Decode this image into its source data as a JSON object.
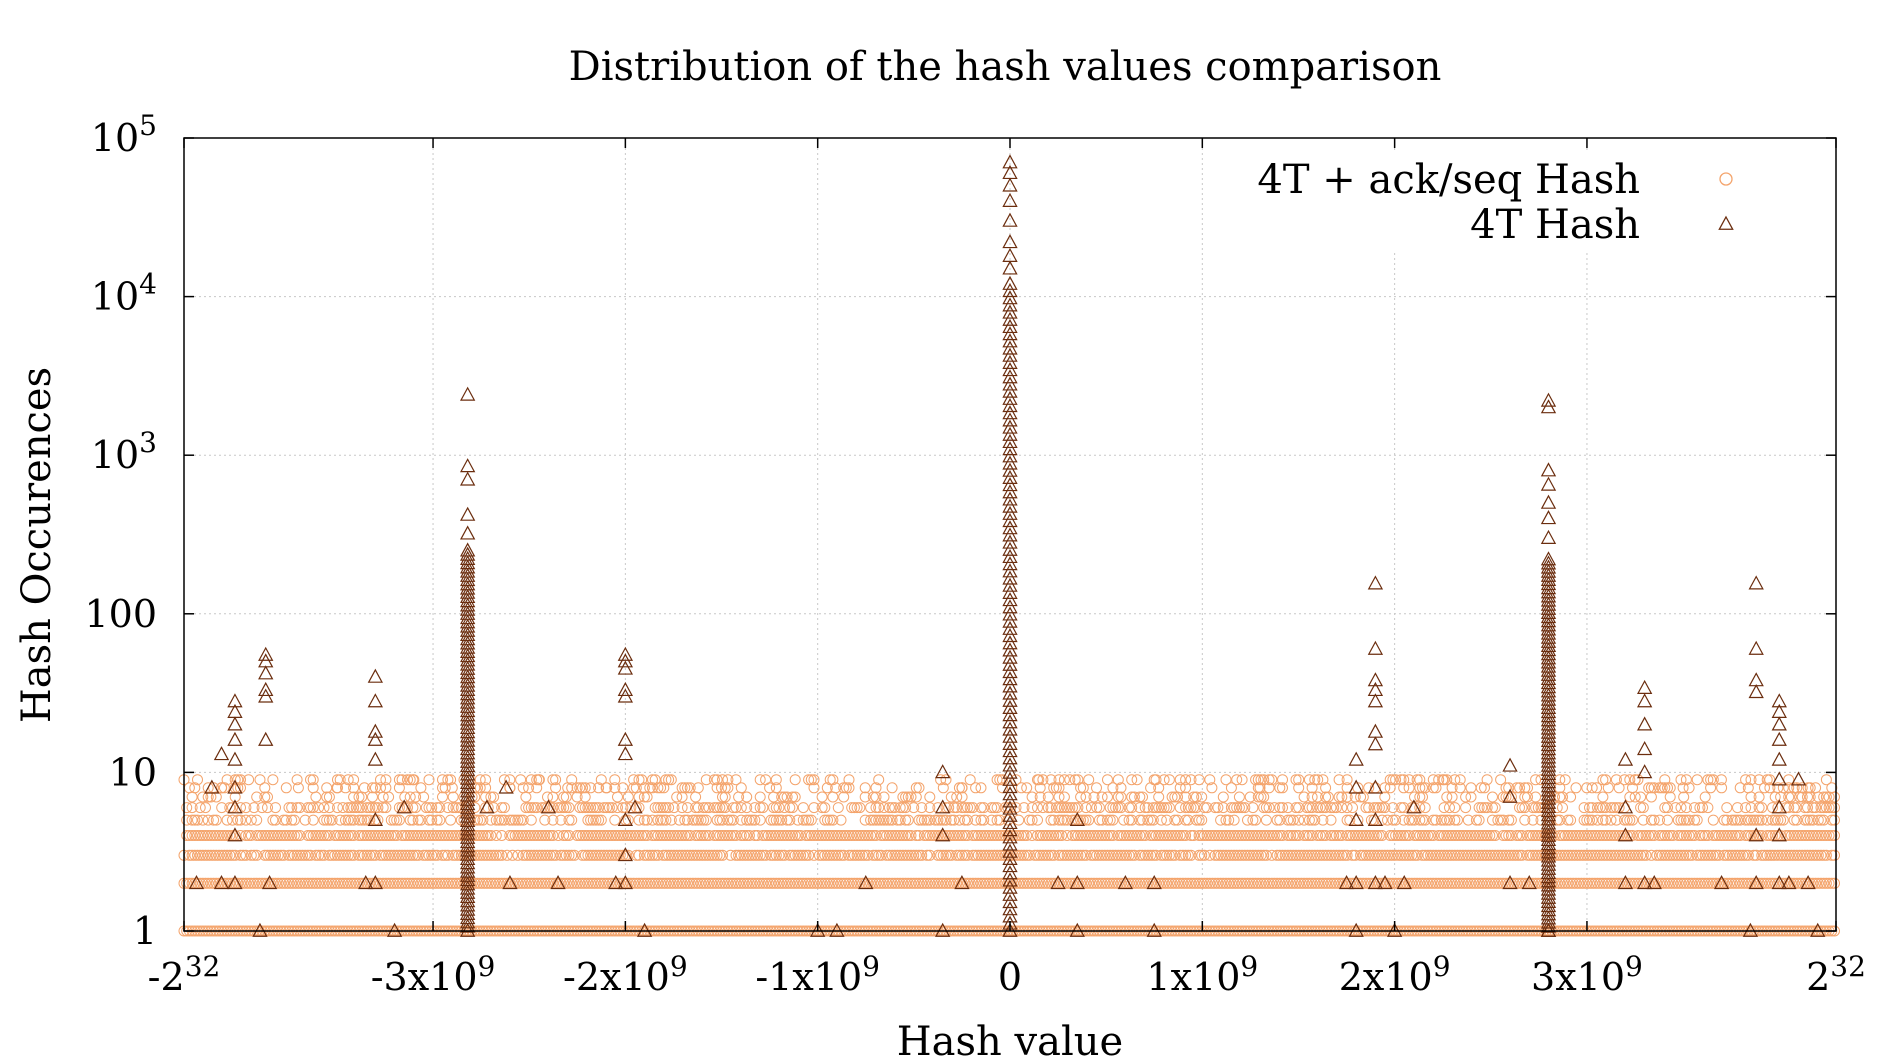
{
  "chart_data": {
    "type": "scatter",
    "title": "Distribution of the hash values comparison",
    "xlabel": "Hash value",
    "ylabel": "Hash Occurences",
    "xlim": [
      -4294967296,
      4294967296
    ],
    "ylim": [
      1,
      100000
    ],
    "y_scale": "log",
    "grid": true,
    "legend_position": "top-right",
    "x_ticks": [
      {
        "value": -4294967296,
        "base": "-2",
        "exp": "32"
      },
      {
        "value": -3000000000,
        "base": "-3x10",
        "exp": "9"
      },
      {
        "value": -2000000000,
        "base": "-2x10",
        "exp": "9"
      },
      {
        "value": -1000000000,
        "base": "-1x10",
        "exp": "9"
      },
      {
        "value": 0,
        "base": "0",
        "exp": ""
      },
      {
        "value": 1000000000,
        "base": "1x10",
        "exp": "9"
      },
      {
        "value": 2000000000,
        "base": "2x10",
        "exp": "9"
      },
      {
        "value": 3000000000,
        "base": "3x10",
        "exp": "9"
      },
      {
        "value": 4294967296,
        "base": "2",
        "exp": "32"
      }
    ],
    "y_ticks": [
      {
        "value": 1,
        "base": "1",
        "exp": ""
      },
      {
        "value": 10,
        "base": "10",
        "exp": ""
      },
      {
        "value": 100,
        "base": "100",
        "exp": ""
      },
      {
        "value": 1000,
        "base": "10",
        "exp": "3"
      },
      {
        "value": 10000,
        "base": "10",
        "exp": "4"
      },
      {
        "value": 100000,
        "base": "10",
        "exp": "5"
      }
    ],
    "series": [
      {
        "name": "4T + ack/seq Hash",
        "marker": "circle",
        "color": "#f4a46c",
        "background_levels": [
          1,
          2,
          3,
          4,
          5,
          6,
          7,
          8,
          9
        ],
        "x_step": 14000000,
        "points": [
          {
            "x": -4100000000,
            "y": 8
          },
          {
            "x": -3900000000,
            "y": 9
          },
          {
            "x": -3700000000,
            "y": 8
          },
          {
            "x": -3500000000,
            "y": 8
          },
          {
            "x": -3300000000,
            "y": 8
          },
          {
            "x": -3100000000,
            "y": 9
          },
          {
            "x": -2900000000,
            "y": 8
          },
          {
            "x": -2600000000,
            "y": 8
          },
          {
            "x": -2450000000,
            "y": 9
          },
          {
            "x": -2300000000,
            "y": 8
          },
          {
            "x": -2100000000,
            "y": 8
          },
          {
            "x": -1800000000,
            "y": 8
          },
          {
            "x": -1500000000,
            "y": 8
          },
          {
            "x": -1250000000,
            "y": 8
          },
          {
            "x": -950000000,
            "y": 8
          },
          {
            "x": -250000000,
            "y": 8
          },
          {
            "x": 150000000,
            "y": 9
          },
          {
            "x": 450000000,
            "y": 8
          },
          {
            "x": 750000000,
            "y": 9
          },
          {
            "x": 1050000000,
            "y": 8
          },
          {
            "x": 1300000000,
            "y": 8
          },
          {
            "x": 1600000000,
            "y": 9
          },
          {
            "x": 1900000000,
            "y": 8
          },
          {
            "x": 2250000000,
            "y": 9
          },
          {
            "x": 2450000000,
            "y": 8
          },
          {
            "x": 2650000000,
            "y": 8
          },
          {
            "x": 3050000000,
            "y": 8
          },
          {
            "x": 3250000000,
            "y": 9
          },
          {
            "x": 3500000000,
            "y": 8
          },
          {
            "x": 3700000000,
            "y": 8
          },
          {
            "x": 3950000000,
            "y": 9
          },
          {
            "x": 4150000000,
            "y": 8
          }
        ]
      },
      {
        "name": "4T Hash",
        "marker": "triangle",
        "color": "#6b2d0e",
        "spikes": [
          {
            "x": 0,
            "y_max": 12000,
            "outliers": [
              15000,
              18000,
              22000,
              30000,
              40000,
              50000,
              60000,
              70000
            ]
          },
          {
            "x": -2820000000,
            "y_max": 250,
            "outliers": [
              320,
              420,
              700,
              850,
              2400
            ]
          },
          {
            "x": 2800000000,
            "y_max": 220,
            "outliers": [
              300,
              400,
              500,
              650,
              800,
              2000,
              2200
            ]
          }
        ],
        "points": [
          {
            "x": -4030000000,
            "y": 28
          },
          {
            "x": -4030000000,
            "y": 24
          },
          {
            "x": -4030000000,
            "y": 20
          },
          {
            "x": -4030000000,
            "y": 16
          },
          {
            "x": -4030000000,
            "y": 12
          },
          {
            "x": -4030000000,
            "y": 8
          },
          {
            "x": -4030000000,
            "y": 6
          },
          {
            "x": -4030000000,
            "y": 4
          },
          {
            "x": -4030000000,
            "y": 2
          },
          {
            "x": -4100000000,
            "y": 13
          },
          {
            "x": -4100000000,
            "y": 2
          },
          {
            "x": -4150000000,
            "y": 8
          },
          {
            "x": -4230000000,
            "y": 2
          },
          {
            "x": -3870000000,
            "y": 55
          },
          {
            "x": -3870000000,
            "y": 50
          },
          {
            "x": -3870000000,
            "y": 42
          },
          {
            "x": -3870000000,
            "y": 33
          },
          {
            "x": -3870000000,
            "y": 30
          },
          {
            "x": -3870000000,
            "y": 16
          },
          {
            "x": -3900000000,
            "y": 1
          },
          {
            "x": -3850000000,
            "y": 2
          },
          {
            "x": -3300000000,
            "y": 40
          },
          {
            "x": -3300000000,
            "y": 28
          },
          {
            "x": -3300000000,
            "y": 18
          },
          {
            "x": -3300000000,
            "y": 16
          },
          {
            "x": -3300000000,
            "y": 12
          },
          {
            "x": -3300000000,
            "y": 5
          },
          {
            "x": -3300000000,
            "y": 2
          },
          {
            "x": -3350000000,
            "y": 2
          },
          {
            "x": -3200000000,
            "y": 1
          },
          {
            "x": -3150000000,
            "y": 6
          },
          {
            "x": -2720000000,
            "y": 6
          },
          {
            "x": -2620000000,
            "y": 8
          },
          {
            "x": -2600000000,
            "y": 2
          },
          {
            "x": -2400000000,
            "y": 6
          },
          {
            "x": -2350000000,
            "y": 2
          },
          {
            "x": -2050000000,
            "y": 2
          },
          {
            "x": -2000000000,
            "y": 55
          },
          {
            "x": -2000000000,
            "y": 50
          },
          {
            "x": -2000000000,
            "y": 45
          },
          {
            "x": -2000000000,
            "y": 33
          },
          {
            "x": -2000000000,
            "y": 30
          },
          {
            "x": -2000000000,
            "y": 16
          },
          {
            "x": -2000000000,
            "y": 13
          },
          {
            "x": -2000000000,
            "y": 5
          },
          {
            "x": -2000000000,
            "y": 3
          },
          {
            "x": -2000000000,
            "y": 2
          },
          {
            "x": -1950000000,
            "y": 6
          },
          {
            "x": -1900000000,
            "y": 1
          },
          {
            "x": -1000000000,
            "y": 1
          },
          {
            "x": -900000000,
            "y": 1
          },
          {
            "x": -750000000,
            "y": 2
          },
          {
            "x": -350000000,
            "y": 10
          },
          {
            "x": -350000000,
            "y": 6
          },
          {
            "x": -350000000,
            "y": 4
          },
          {
            "x": -350000000,
            "y": 1
          },
          {
            "x": -250000000,
            "y": 2
          },
          {
            "x": 250000000,
            "y": 2
          },
          {
            "x": 350000000,
            "y": 5
          },
          {
            "x": 350000000,
            "y": 2
          },
          {
            "x": 350000000,
            "y": 1
          },
          {
            "x": 600000000,
            "y": 2
          },
          {
            "x": 750000000,
            "y": 2
          },
          {
            "x": 750000000,
            "y": 1
          },
          {
            "x": 1750000000,
            "y": 2
          },
          {
            "x": 1800000000,
            "y": 12
          },
          {
            "x": 1800000000,
            "y": 8
          },
          {
            "x": 1800000000,
            "y": 5
          },
          {
            "x": 1800000000,
            "y": 2
          },
          {
            "x": 1800000000,
            "y": 1
          },
          {
            "x": 1900000000,
            "y": 155
          },
          {
            "x": 1900000000,
            "y": 60
          },
          {
            "x": 1900000000,
            "y": 38
          },
          {
            "x": 1900000000,
            "y": 33
          },
          {
            "x": 1900000000,
            "y": 28
          },
          {
            "x": 1900000000,
            "y": 18
          },
          {
            "x": 1900000000,
            "y": 15
          },
          {
            "x": 1900000000,
            "y": 8
          },
          {
            "x": 1900000000,
            "y": 5
          },
          {
            "x": 1900000000,
            "y": 2
          },
          {
            "x": 1950000000,
            "y": 2
          },
          {
            "x": 2000000000,
            "y": 1
          },
          {
            "x": 2050000000,
            "y": 2
          },
          {
            "x": 2100000000,
            "y": 6
          },
          {
            "x": 2600000000,
            "y": 11
          },
          {
            "x": 2600000000,
            "y": 7
          },
          {
            "x": 2600000000,
            "y": 2
          },
          {
            "x": 2700000000,
            "y": 2
          },
          {
            "x": 2800000000,
            "y": 1
          },
          {
            "x": 3200000000,
            "y": 12
          },
          {
            "x": 3200000000,
            "y": 6
          },
          {
            "x": 3200000000,
            "y": 4
          },
          {
            "x": 3200000000,
            "y": 2
          },
          {
            "x": 3300000000,
            "y": 34
          },
          {
            "x": 3300000000,
            "y": 28
          },
          {
            "x": 3300000000,
            "y": 20
          },
          {
            "x": 3300000000,
            "y": 14
          },
          {
            "x": 3300000000,
            "y": 10
          },
          {
            "x": 3300000000,
            "y": 2
          },
          {
            "x": 3350000000,
            "y": 2
          },
          {
            "x": 3700000000,
            "y": 2
          },
          {
            "x": 3850000000,
            "y": 1
          },
          {
            "x": 3880000000,
            "y": 155
          },
          {
            "x": 3880000000,
            "y": 60
          },
          {
            "x": 3880000000,
            "y": 38
          },
          {
            "x": 3880000000,
            "y": 32
          },
          {
            "x": 3880000000,
            "y": 4
          },
          {
            "x": 3880000000,
            "y": 2
          },
          {
            "x": 4000000000,
            "y": 28
          },
          {
            "x": 4000000000,
            "y": 24
          },
          {
            "x": 4000000000,
            "y": 20
          },
          {
            "x": 4000000000,
            "y": 16
          },
          {
            "x": 4000000000,
            "y": 12
          },
          {
            "x": 4000000000,
            "y": 9
          },
          {
            "x": 4000000000,
            "y": 6
          },
          {
            "x": 4000000000,
            "y": 4
          },
          {
            "x": 4000000000,
            "y": 2
          },
          {
            "x": 4050000000,
            "y": 2
          },
          {
            "x": 4100000000,
            "y": 9
          },
          {
            "x": 4150000000,
            "y": 2
          },
          {
            "x": 4200000000,
            "y": 1
          }
        ]
      }
    ]
  }
}
